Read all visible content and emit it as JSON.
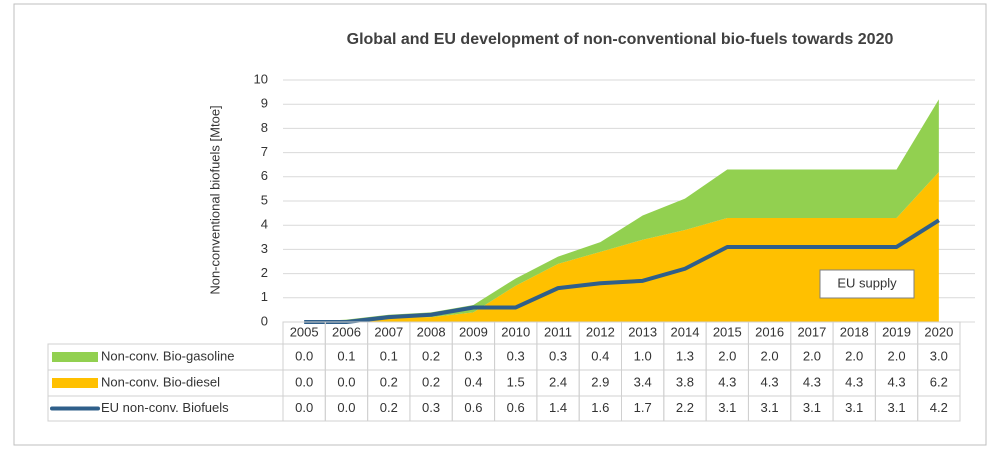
{
  "chart_data": {
    "type": "area",
    "stacked": true,
    "title": "Global and EU development of non-conventional bio-fuels towards 2020",
    "y_label": "Non-conventional biofuels [Mtoe]",
    "annotation": "EU supply",
    "categories": [
      "2005",
      "2006",
      "2007",
      "2008",
      "2009",
      "2010",
      "2011",
      "2012",
      "2013",
      "2014",
      "2015",
      "2016",
      "2017",
      "2018",
      "2019",
      "2020"
    ],
    "ylim": [
      0,
      10
    ],
    "yticks": [
      0,
      1,
      2,
      3,
      4,
      5,
      6,
      7,
      8,
      9,
      10
    ],
    "grid": true,
    "series": [
      {
        "name": "Non-conv. Bio-gasoline",
        "color": "#92d050",
        "type": "area",
        "values": [
          0.0,
          0.1,
          0.1,
          0.2,
          0.3,
          0.3,
          0.3,
          0.4,
          1.0,
          1.3,
          2.0,
          2.0,
          2.0,
          2.0,
          2.0,
          3.0
        ],
        "value_labels": [
          "0.0",
          "0.1",
          "0.1",
          "0.2",
          "0.3",
          "0.3",
          "0.3",
          "0.4",
          "1.0",
          "1.3",
          "2.0",
          "2.0",
          "2.0",
          "2.0",
          "2.0",
          "3.0"
        ]
      },
      {
        "name": "Non-conv. Bio-diesel",
        "color": "#ffc000",
        "type": "area",
        "values": [
          0.0,
          0.0,
          0.2,
          0.2,
          0.4,
          1.5,
          2.4,
          2.9,
          3.4,
          3.8,
          4.3,
          4.3,
          4.3,
          4.3,
          4.3,
          6.2
        ],
        "value_labels": [
          "0.0",
          "0.0",
          "0.2",
          "0.2",
          "0.4",
          "1.5",
          "2.4",
          "2.9",
          "3.4",
          "3.8",
          "4.3",
          "4.3",
          "4.3",
          "4.3",
          "4.3",
          "6.2"
        ]
      },
      {
        "name": "EU non-conv. Biofuels",
        "color": "#2f5f8a",
        "type": "line",
        "values": [
          0.0,
          0.0,
          0.2,
          0.3,
          0.6,
          0.6,
          1.4,
          1.6,
          1.7,
          2.2,
          3.1,
          3.1,
          3.1,
          3.1,
          3.1,
          4.2
        ],
        "value_labels": [
          "0.0",
          "0.0",
          "0.2",
          "0.3",
          "0.6",
          "0.6",
          "1.4",
          "1.6",
          "1.7",
          "2.2",
          "3.1",
          "3.1",
          "3.1",
          "3.1",
          "3.1",
          "4.2"
        ]
      }
    ]
  }
}
